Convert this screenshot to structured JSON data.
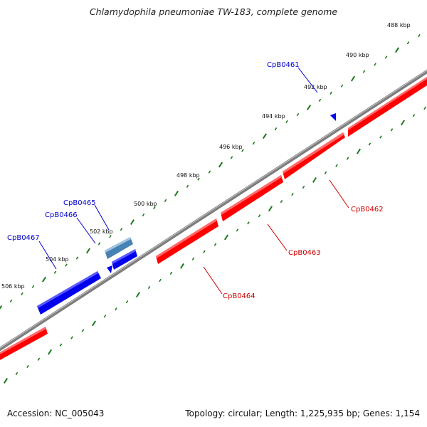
{
  "title": "Chlamydophila pneumoniae TW-183, complete genome",
  "accession": "Accession: NC_005043",
  "summary": "Topology: circular; Length: 1,225,935 bp; Genes: 1,154",
  "kbp_labels": [
    "488 kbp",
    "490 kbp",
    "492 kbp",
    "494 kbp",
    "496 kbp",
    "498 kbp",
    "500 kbp",
    "502 kbp",
    "504 kbp",
    "506 kbp"
  ],
  "genes": {
    "CpB0461": "CpB0461",
    "CpB0462": "CpB0462",
    "CpB0463": "CpB0463",
    "CpB0464": "CpB0464",
    "CpB0465": "CpB0465",
    "CpB0466": "CpB0466",
    "CpB0467": "CpB0467"
  },
  "colors": {
    "forward": "#ff0000",
    "reverse": "#0000ee",
    "reverse_alt": "#4682b4",
    "backbone": "#808080",
    "ticks": "#1a7a1a",
    "forward_label": "#cc0000",
    "reverse_label": "#0000cc"
  }
}
